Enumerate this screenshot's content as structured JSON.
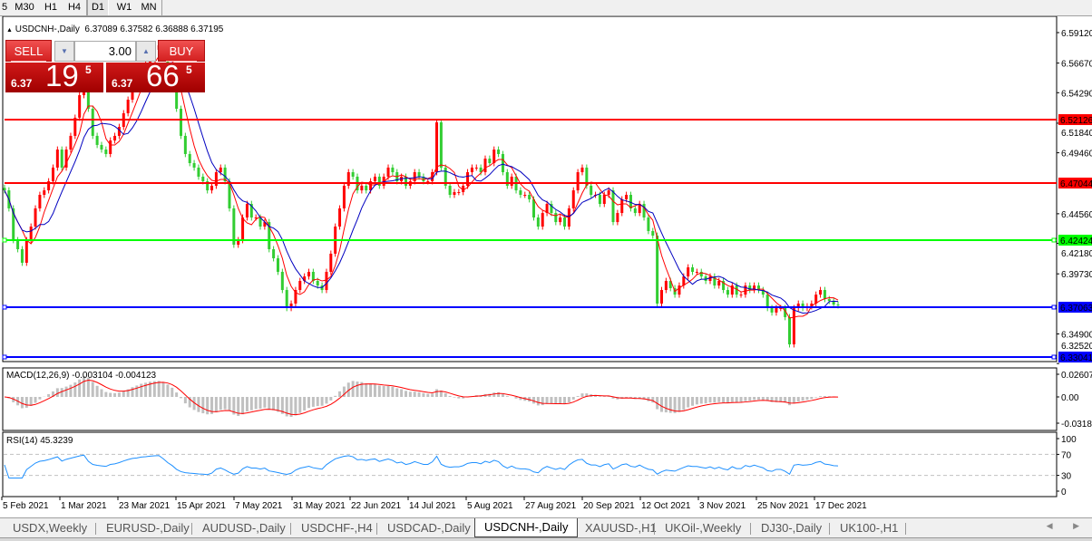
{
  "timeframes": [
    {
      "label": "5",
      "active": false
    },
    {
      "label": "M30",
      "active": false
    },
    {
      "label": "H1",
      "active": false
    },
    {
      "label": "H4",
      "active": false
    },
    {
      "label": "D1",
      "active": true
    },
    {
      "label": "W1",
      "active": false
    },
    {
      "label": "MN",
      "active": false
    }
  ],
  "chart": {
    "title": "USDCNH-,Daily",
    "ohlc": "6.37089 6.37582 6.36888 6.37195"
  },
  "trade_panel": {
    "sell_label": "SELL",
    "buy_label": "BUY",
    "lot": "3.00",
    "sell_price": {
      "prefix": "6.37",
      "big": "19",
      "sup": "5"
    },
    "buy_price": {
      "prefix": "6.37",
      "big": "66",
      "sup": "5"
    }
  },
  "indicators": {
    "macd_title": "MACD(12,26,9) -0.003104 -0.004123",
    "rsi_title": "RSI(14) 45.3239"
  },
  "chart_data": {
    "type": "candlestick",
    "symbol": "USDCNH-",
    "price_axis_ticks": [
      "6.59120",
      "6.56670",
      "6.54290",
      "6.51840",
      "6.49460",
      "6.44560",
      "6.42180",
      "6.39730",
      "6.34900",
      "6.32520"
    ],
    "price_axis_values": [
      6.5912,
      6.5667,
      6.5429,
      6.5184,
      6.4946,
      6.4456,
      6.4218,
      6.3973,
      6.349,
      6.3252
    ],
    "horizontal_lines": [
      {
        "price": 6.52126,
        "label": "6.52126",
        "color": "#ff0000"
      },
      {
        "price": 6.47044,
        "label": "6.47044",
        "color": "#ff0000"
      },
      {
        "price": 6.42424,
        "label": "6.42424",
        "color": "#00ff00"
      },
      {
        "price": 6.37063,
        "label": "6.37063",
        "color": "#0000ff"
      },
      {
        "price": 6.33041,
        "label": "6.33041",
        "color": "#0000ff"
      }
    ],
    "date_ticks": [
      "5 Feb 2021",
      "1 Mar 2021",
      "23 Mar 2021",
      "15 Apr 2021",
      "7 May 2021",
      "31 May 2021",
      "22 Jun 2021",
      "14 Jul 2021",
      "5 Aug 2021",
      "27 Aug 2021",
      "20 Sep 2021",
      "12 Oct 2021",
      "3 Nov 2021",
      "25 Nov 2021",
      "17 Dec 2021"
    ],
    "bull_color": "#ff0000",
    "bear_color": "#32cd32",
    "ma_colors": [
      "#ff0000",
      "#0000c0"
    ],
    "closes": [
      6.4644,
      6.4499,
      6.4244,
      6.4171,
      6.4062,
      6.4244,
      6.4353,
      6.4499,
      6.4608,
      6.4644,
      6.4717,
      6.4827,
      6.4972,
      6.4827,
      6.4972,
      6.5082,
      6.5228,
      6.5409,
      6.5591,
      6.53,
      6.5082,
      6.5009,
      6.4972,
      6.4936,
      6.5045,
      6.5082,
      6.5154,
      6.5264,
      6.5373,
      6.5482,
      6.5533,
      6.5628,
      6.5664,
      6.5737,
      6.5774,
      6.581,
      6.5737,
      6.5628,
      6.5519,
      6.53,
      6.5082,
      6.4936,
      6.4863,
      6.4827,
      6.4754,
      6.4717,
      6.4644,
      6.4681,
      6.479,
      6.4827,
      6.4717,
      6.4499,
      6.4207,
      6.4244,
      6.4426,
      6.4535,
      6.4426,
      6.4426,
      6.4353,
      6.4389,
      6.4171,
      6.4098,
      6.3989,
      6.3843,
      6.3698,
      6.3734,
      6.3843,
      6.3916,
      6.3952,
      6.3989,
      6.3916,
      6.3879,
      6.3843,
      6.3989,
      6.4135,
      6.4353,
      6.4499,
      6.4681,
      6.479,
      6.4754,
      6.4644,
      6.4681,
      6.4644,
      6.4717,
      6.4754,
      6.4681,
      6.4754,
      6.4827,
      6.479,
      6.4717,
      6.4754,
      6.4681,
      6.4717,
      6.479,
      6.4754,
      6.4717,
      6.4717,
      6.479,
      6.5191,
      6.4827,
      6.4681,
      6.4608,
      6.463,
      6.463,
      6.4681,
      6.479,
      6.4827,
      6.4827,
      6.479,
      6.4899,
      6.4863,
      6.4972,
      6.4936,
      6.479,
      6.4681,
      6.4754,
      6.4644,
      6.4608,
      6.4608,
      6.4572,
      6.4426,
      6.4353,
      6.4462,
      6.4535,
      6.4462,
      6.4389,
      6.4426,
      6.4353,
      6.4499,
      6.4644,
      6.479,
      6.4827,
      6.4681,
      6.4608,
      6.4608,
      6.4535,
      6.4608,
      6.4644,
      6.4389,
      6.4462,
      6.4572,
      6.4608,
      6.4499,
      6.4462,
      6.4535,
      6.4426,
      6.4317,
      6.428,
      6.3734,
      6.3843,
      6.3916,
      6.3858,
      6.3806,
      6.3879,
      6.3952,
      6.4025,
      6.3989,
      6.3989,
      6.3952,
      6.3916,
      6.3952,
      6.3879,
      6.3916,
      6.3843,
      6.3806,
      6.3879,
      6.3806,
      6.3806,
      6.3879,
      6.3843,
      6.3879,
      6.3843,
      6.3806,
      6.3698,
      6.3662,
      6.3698,
      6.3698,
      6.3625,
      6.3406,
      6.3698,
      6.3734,
      6.3698,
      6.3712,
      6.3734,
      6.3806,
      6.3843,
      6.377,
      6.3755,
      6.3726,
      6.372
    ],
    "macd_axis_ticks": [
      "0.02607",
      "0.00",
      "-0.03187"
    ],
    "macd_axis_values": [
      0.02607,
      0,
      -0.03187
    ],
    "rsi_axis_ticks": [
      "100",
      "70",
      "30",
      "0"
    ],
    "rsi_levels": [
      70,
      30
    ],
    "rsi_color": "#1e90ff"
  },
  "tabs": [
    {
      "label": "USDX,Weekly",
      "active": false
    },
    {
      "label": "EURUSD-,Daily",
      "active": false
    },
    {
      "label": "AUDUSD-,Daily",
      "active": false
    },
    {
      "label": "USDCHF-,H4",
      "active": false
    },
    {
      "label": "USDCAD-,Daily",
      "active": false
    },
    {
      "label": "USDCNH-,Daily",
      "active": true
    },
    {
      "label": "XAUUSD-,H1",
      "active": false
    },
    {
      "label": "UKOil-,Weekly",
      "active": false
    },
    {
      "label": "DJ30-,Daily",
      "active": false
    },
    {
      "label": "UK100-,H1",
      "active": false
    }
  ],
  "tab_scroll": "◀ ▶"
}
